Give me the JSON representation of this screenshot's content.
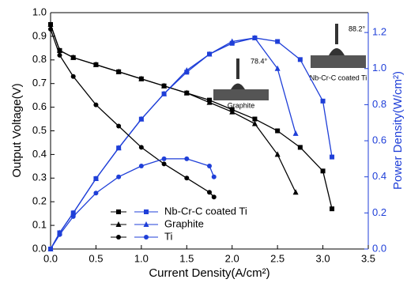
{
  "chart_data": {
    "type": "line",
    "xlabel": "Current Density(A/cm²)",
    "ylabel": "Output Voltage(V)",
    "y2label": "Power Density(W/cm²)",
    "xlim": [
      0,
      3.5
    ],
    "ylim": [
      0,
      1.0
    ],
    "y2lim": [
      0,
      1.31
    ],
    "xticks": [
      {
        "value": 0,
        "label": "0.0"
      },
      {
        "value": 0.5,
        "label": "0.5"
      },
      {
        "value": 1,
        "label": "1.0"
      },
      {
        "value": 1.5,
        "label": "1.5"
      },
      {
        "value": 2,
        "label": "2.0"
      },
      {
        "value": 2.5,
        "label": "2.5"
      },
      {
        "value": 3,
        "label": "3.0"
      },
      {
        "value": 3.5,
        "label": "3.5"
      }
    ],
    "yticks": [
      {
        "value": 0,
        "label": "0.0"
      },
      {
        "value": 0.1,
        "label": "0.1"
      },
      {
        "value": 0.2,
        "label": "0.2"
      },
      {
        "value": 0.3,
        "label": "0.3"
      },
      {
        "value": 0.4,
        "label": "0.4"
      },
      {
        "value": 0.5,
        "label": "0.5"
      },
      {
        "value": 0.6,
        "label": "0.6"
      },
      {
        "value": 0.7,
        "label": "0.7"
      },
      {
        "value": 0.8,
        "label": "0.8"
      },
      {
        "value": 0.9,
        "label": "0.9"
      },
      {
        "value": 1,
        "label": "1.0"
      }
    ],
    "y2ticks": [
      {
        "value": 0,
        "label": "0.0"
      },
      {
        "value": 0.2,
        "label": "0.2"
      },
      {
        "value": 0.4,
        "label": "0.4"
      },
      {
        "value": 0.6,
        "label": "0.6"
      },
      {
        "value": 0.8,
        "label": "0.8"
      },
      {
        "value": 1,
        "label": "1.0"
      },
      {
        "value": 1.2,
        "label": "1.2"
      }
    ],
    "voltage_color": "#000000",
    "power_color": "#1f3fd8",
    "series": [
      {
        "name": "Nb-Cr-C coated Ti",
        "marker": "square",
        "x": [
          0,
          0.1,
          0.25,
          0.5,
          0.75,
          1.0,
          1.25,
          1.5,
          1.75,
          2.0,
          2.25,
          2.5,
          2.75,
          3.0,
          3.1
        ],
        "voltage": [
          0.95,
          0.84,
          0.81,
          0.78,
          0.75,
          0.72,
          0.69,
          0.66,
          0.63,
          0.59,
          0.55,
          0.5,
          0.43,
          0.33,
          0.17
        ],
        "power": [
          0,
          0.09,
          0.2,
          0.39,
          0.56,
          0.72,
          0.86,
          0.98,
          1.08,
          1.14,
          1.17,
          1.15,
          1.05,
          0.82,
          0.51
        ]
      },
      {
        "name": "Graphite",
        "marker": "triangle",
        "x": [
          0,
          0.1,
          0.25,
          0.5,
          0.75,
          1.0,
          1.25,
          1.5,
          1.75,
          2.0,
          2.25,
          2.5,
          2.7
        ],
        "voltage": [
          0.95,
          0.84,
          0.81,
          0.78,
          0.75,
          0.72,
          0.69,
          0.66,
          0.62,
          0.58,
          0.53,
          0.4,
          0.24
        ],
        "power": [
          0,
          0.09,
          0.2,
          0.39,
          0.56,
          0.72,
          0.86,
          0.99,
          1.08,
          1.15,
          1.17,
          1.0,
          0.64
        ]
      },
      {
        "name": "Ti",
        "marker": "circle",
        "x": [
          0,
          0.1,
          0.25,
          0.5,
          0.75,
          1.0,
          1.25,
          1.5,
          1.75,
          1.8
        ],
        "voltage": [
          0.93,
          0.82,
          0.73,
          0.61,
          0.52,
          0.43,
          0.36,
          0.3,
          0.24,
          0.22
        ],
        "power": [
          0,
          0.08,
          0.18,
          0.31,
          0.4,
          0.46,
          0.5,
          0.5,
          0.46,
          0.4
        ]
      }
    ],
    "annotations": [
      "78.4°",
      "Graphite",
      "88.2°",
      "Nb-Cr-C coated Ti"
    ]
  }
}
